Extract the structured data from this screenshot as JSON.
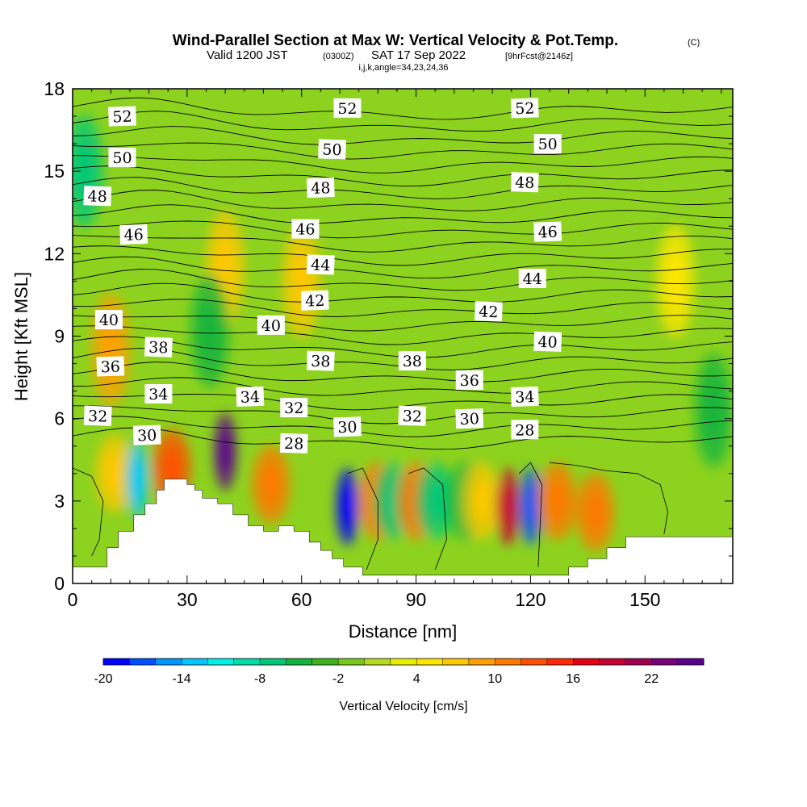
{
  "title": {
    "main": "Wind-Parallel Section at Max W: Vertical Velocity & Pot.Temp.",
    "main_mark": "(C)",
    "valid_prefix": "Valid 1200 JST",
    "valid_utc": "(0300Z)",
    "valid_date": "SAT 17 Sep 2022",
    "forecast": "[9hrFcst@2146z]",
    "indices": "i,j,k,angle=34,23,24,36"
  },
  "chart_data": {
    "type": "heatmap",
    "title": "Wind-Parallel Section at Max W: Vertical Velocity & Pot.Temp.",
    "xlabel": "Distance [nm]",
    "ylabel": "Height [Kft MSL]",
    "xlim": [
      0,
      173
    ],
    "ylim": [
      0,
      18
    ],
    "x_ticks": [
      0,
      30,
      60,
      90,
      120,
      150
    ],
    "y_ticks": [
      0,
      3,
      6,
      9,
      12,
      15,
      18
    ],
    "colorbar": {
      "title": "Vertical Velocity [cm/s]",
      "min": -20,
      "step": 2,
      "tick_labels": [
        "-20",
        "-14",
        "-8",
        "-2",
        "4",
        "10",
        "16",
        "22"
      ],
      "tick_values": [
        -20,
        -14,
        -8,
        -2,
        4,
        10,
        16,
        22
      ],
      "colors": [
        "#0000ff",
        "#0050ff",
        "#0096ff",
        "#00c8ff",
        "#00f0e6",
        "#00dcaa",
        "#00c878",
        "#14b43c",
        "#3cb41e",
        "#78c81e",
        "#b4dc1e",
        "#e6f000",
        "#ffe600",
        "#ffc800",
        "#ffa000",
        "#ff7800",
        "#ff5000",
        "#ff2800",
        "#e60014",
        "#c80032",
        "#a00050",
        "#780078",
        "#5a008c"
      ]
    },
    "terrain_heights": [
      [
        0,
        0.6
      ],
      [
        6,
        0.6
      ],
      [
        9,
        1.3
      ],
      [
        12,
        1.9
      ],
      [
        16,
        2.5
      ],
      [
        19,
        2.9
      ],
      [
        22,
        3.4
      ],
      [
        24,
        3.8
      ],
      [
        28,
        3.8
      ],
      [
        30,
        3.6
      ],
      [
        32,
        3.4
      ],
      [
        34,
        3.1
      ],
      [
        38,
        2.9
      ],
      [
        42,
        2.5
      ],
      [
        46,
        2.1
      ],
      [
        50,
        1.9
      ],
      [
        54,
        2.1
      ],
      [
        58,
        1.9
      ],
      [
        62,
        1.5
      ],
      [
        65,
        1.2
      ],
      [
        68,
        0.9
      ],
      [
        71,
        0.6
      ],
      [
        76,
        0.3
      ],
      [
        120,
        0.3
      ],
      [
        130,
        0.6
      ],
      [
        135,
        0.9
      ],
      [
        140,
        1.3
      ],
      [
        145,
        1.7
      ],
      [
        173,
        1.7
      ]
    ],
    "vertical_velocity_cells": [
      {
        "x": 3,
        "y": 15,
        "value": -8
      },
      {
        "x": 10,
        "y": 8.5,
        "value": 8
      },
      {
        "x": 11,
        "y": 4,
        "value": 6
      },
      {
        "x": 17,
        "y": 3.8,
        "value": -14
      },
      {
        "x": 26,
        "y": 4.2,
        "value": 12
      },
      {
        "x": 40,
        "y": 4.8,
        "value": 24
      },
      {
        "x": 40,
        "y": 11.5,
        "value": 6
      },
      {
        "x": 36,
        "y": 9.2,
        "value": -6
      },
      {
        "x": 52,
        "y": 3.6,
        "value": 10
      },
      {
        "x": 60,
        "y": 11,
        "value": 6
      },
      {
        "x": 72,
        "y": 2.8,
        "value": -20
      },
      {
        "x": 80,
        "y": 3,
        "value": 10
      },
      {
        "x": 84,
        "y": 3,
        "value": -8
      },
      {
        "x": 90,
        "y": 3,
        "value": 10
      },
      {
        "x": 95,
        "y": 3,
        "value": -8
      },
      {
        "x": 103,
        "y": 3,
        "value": -6
      },
      {
        "x": 107,
        "y": 3,
        "value": 6
      },
      {
        "x": 114,
        "y": 2.8,
        "value": 18
      },
      {
        "x": 120,
        "y": 2.8,
        "value": -18
      },
      {
        "x": 127,
        "y": 3,
        "value": 10
      },
      {
        "x": 137,
        "y": 2.6,
        "value": 10
      },
      {
        "x": 158,
        "y": 11,
        "value": 4
      },
      {
        "x": 168,
        "y": 6.3,
        "value": -6
      }
    ],
    "potential_temperature": {
      "unit": "C",
      "levels": [
        28,
        29,
        30,
        31,
        32,
        33,
        34,
        35,
        36,
        37,
        38,
        39,
        40,
        41,
        42,
        43,
        44,
        45,
        46,
        47,
        48,
        49,
        50,
        51,
        52,
        53
      ],
      "labels": [
        {
          "text": "52",
          "x": 13,
          "y": 17.0
        },
        {
          "text": "50",
          "x": 13,
          "y": 15.5
        },
        {
          "text": "48",
          "x": 6.5,
          "y": 14.1
        },
        {
          "text": "46",
          "x": 16,
          "y": 12.7
        },
        {
          "text": "40",
          "x": 9.5,
          "y": 9.6
        },
        {
          "text": "38",
          "x": 22.5,
          "y": 8.6
        },
        {
          "text": "36",
          "x": 9.9,
          "y": 7.9
        },
        {
          "text": "34",
          "x": 22.5,
          "y": 6.9
        },
        {
          "text": "32",
          "x": 6.6,
          "y": 6.1
        },
        {
          "text": "30",
          "x": 19.5,
          "y": 5.4
        },
        {
          "text": "52",
          "x": 72,
          "y": 17.3
        },
        {
          "text": "50",
          "x": 68,
          "y": 15.8
        },
        {
          "text": "48",
          "x": 65,
          "y": 14.4
        },
        {
          "text": "46",
          "x": 61,
          "y": 12.9
        },
        {
          "text": "44",
          "x": 65,
          "y": 11.6
        },
        {
          "text": "42",
          "x": 63.5,
          "y": 10.3
        },
        {
          "text": "40",
          "x": 52,
          "y": 9.4
        },
        {
          "text": "38",
          "x": 65,
          "y": 8.1
        },
        {
          "text": "34",
          "x": 46.5,
          "y": 6.8
        },
        {
          "text": "32",
          "x": 58,
          "y": 6.4
        },
        {
          "text": "28",
          "x": 58,
          "y": 5.1
        },
        {
          "text": "30",
          "x": 72,
          "y": 5.7
        },
        {
          "text": "38",
          "x": 89,
          "y": 8.1
        },
        {
          "text": "32",
          "x": 89,
          "y": 6.1
        },
        {
          "text": "30",
          "x": 104,
          "y": 6.0
        },
        {
          "text": "36",
          "x": 104,
          "y": 7.4
        },
        {
          "text": "42",
          "x": 109,
          "y": 9.9
        },
        {
          "text": "52",
          "x": 118.5,
          "y": 17.3
        },
        {
          "text": "50",
          "x": 124.5,
          "y": 16.0
        },
        {
          "text": "48",
          "x": 118.5,
          "y": 14.6
        },
        {
          "text": "46",
          "x": 124.5,
          "y": 12.8
        },
        {
          "text": "44",
          "x": 120.5,
          "y": 11.1
        },
        {
          "text": "40",
          "x": 124.5,
          "y": 8.8
        },
        {
          "text": "34",
          "x": 118.5,
          "y": 6.8
        },
        {
          "text": "28",
          "x": 118.5,
          "y": 5.6
        }
      ]
    },
    "zero_contours": [
      [
        [
          0,
          4.2
        ],
        [
          5,
          3.9
        ],
        [
          8,
          3.0
        ],
        [
          7,
          1.6
        ],
        [
          5,
          1.0
        ]
      ],
      [
        [
          72,
          4.0
        ],
        [
          76,
          4.2
        ],
        [
          80,
          3.0
        ],
        [
          80,
          1.6
        ],
        [
          77,
          0.5
        ]
      ],
      [
        [
          88,
          4.0
        ],
        [
          92,
          4.2
        ],
        [
          97,
          3.6
        ],
        [
          98,
          1.6
        ],
        [
          95,
          0.5
        ]
      ],
      [
        [
          117,
          4.0
        ],
        [
          120,
          4.4
        ],
        [
          123,
          3.6
        ],
        [
          122,
          0.6
        ]
      ],
      [
        [
          125,
          4.4
        ],
        [
          132,
          4.3
        ],
        [
          140,
          4.1
        ],
        [
          148,
          4.0
        ],
        [
          154,
          3.6
        ],
        [
          156,
          2.6
        ],
        [
          155,
          1.8
        ]
      ]
    ]
  }
}
